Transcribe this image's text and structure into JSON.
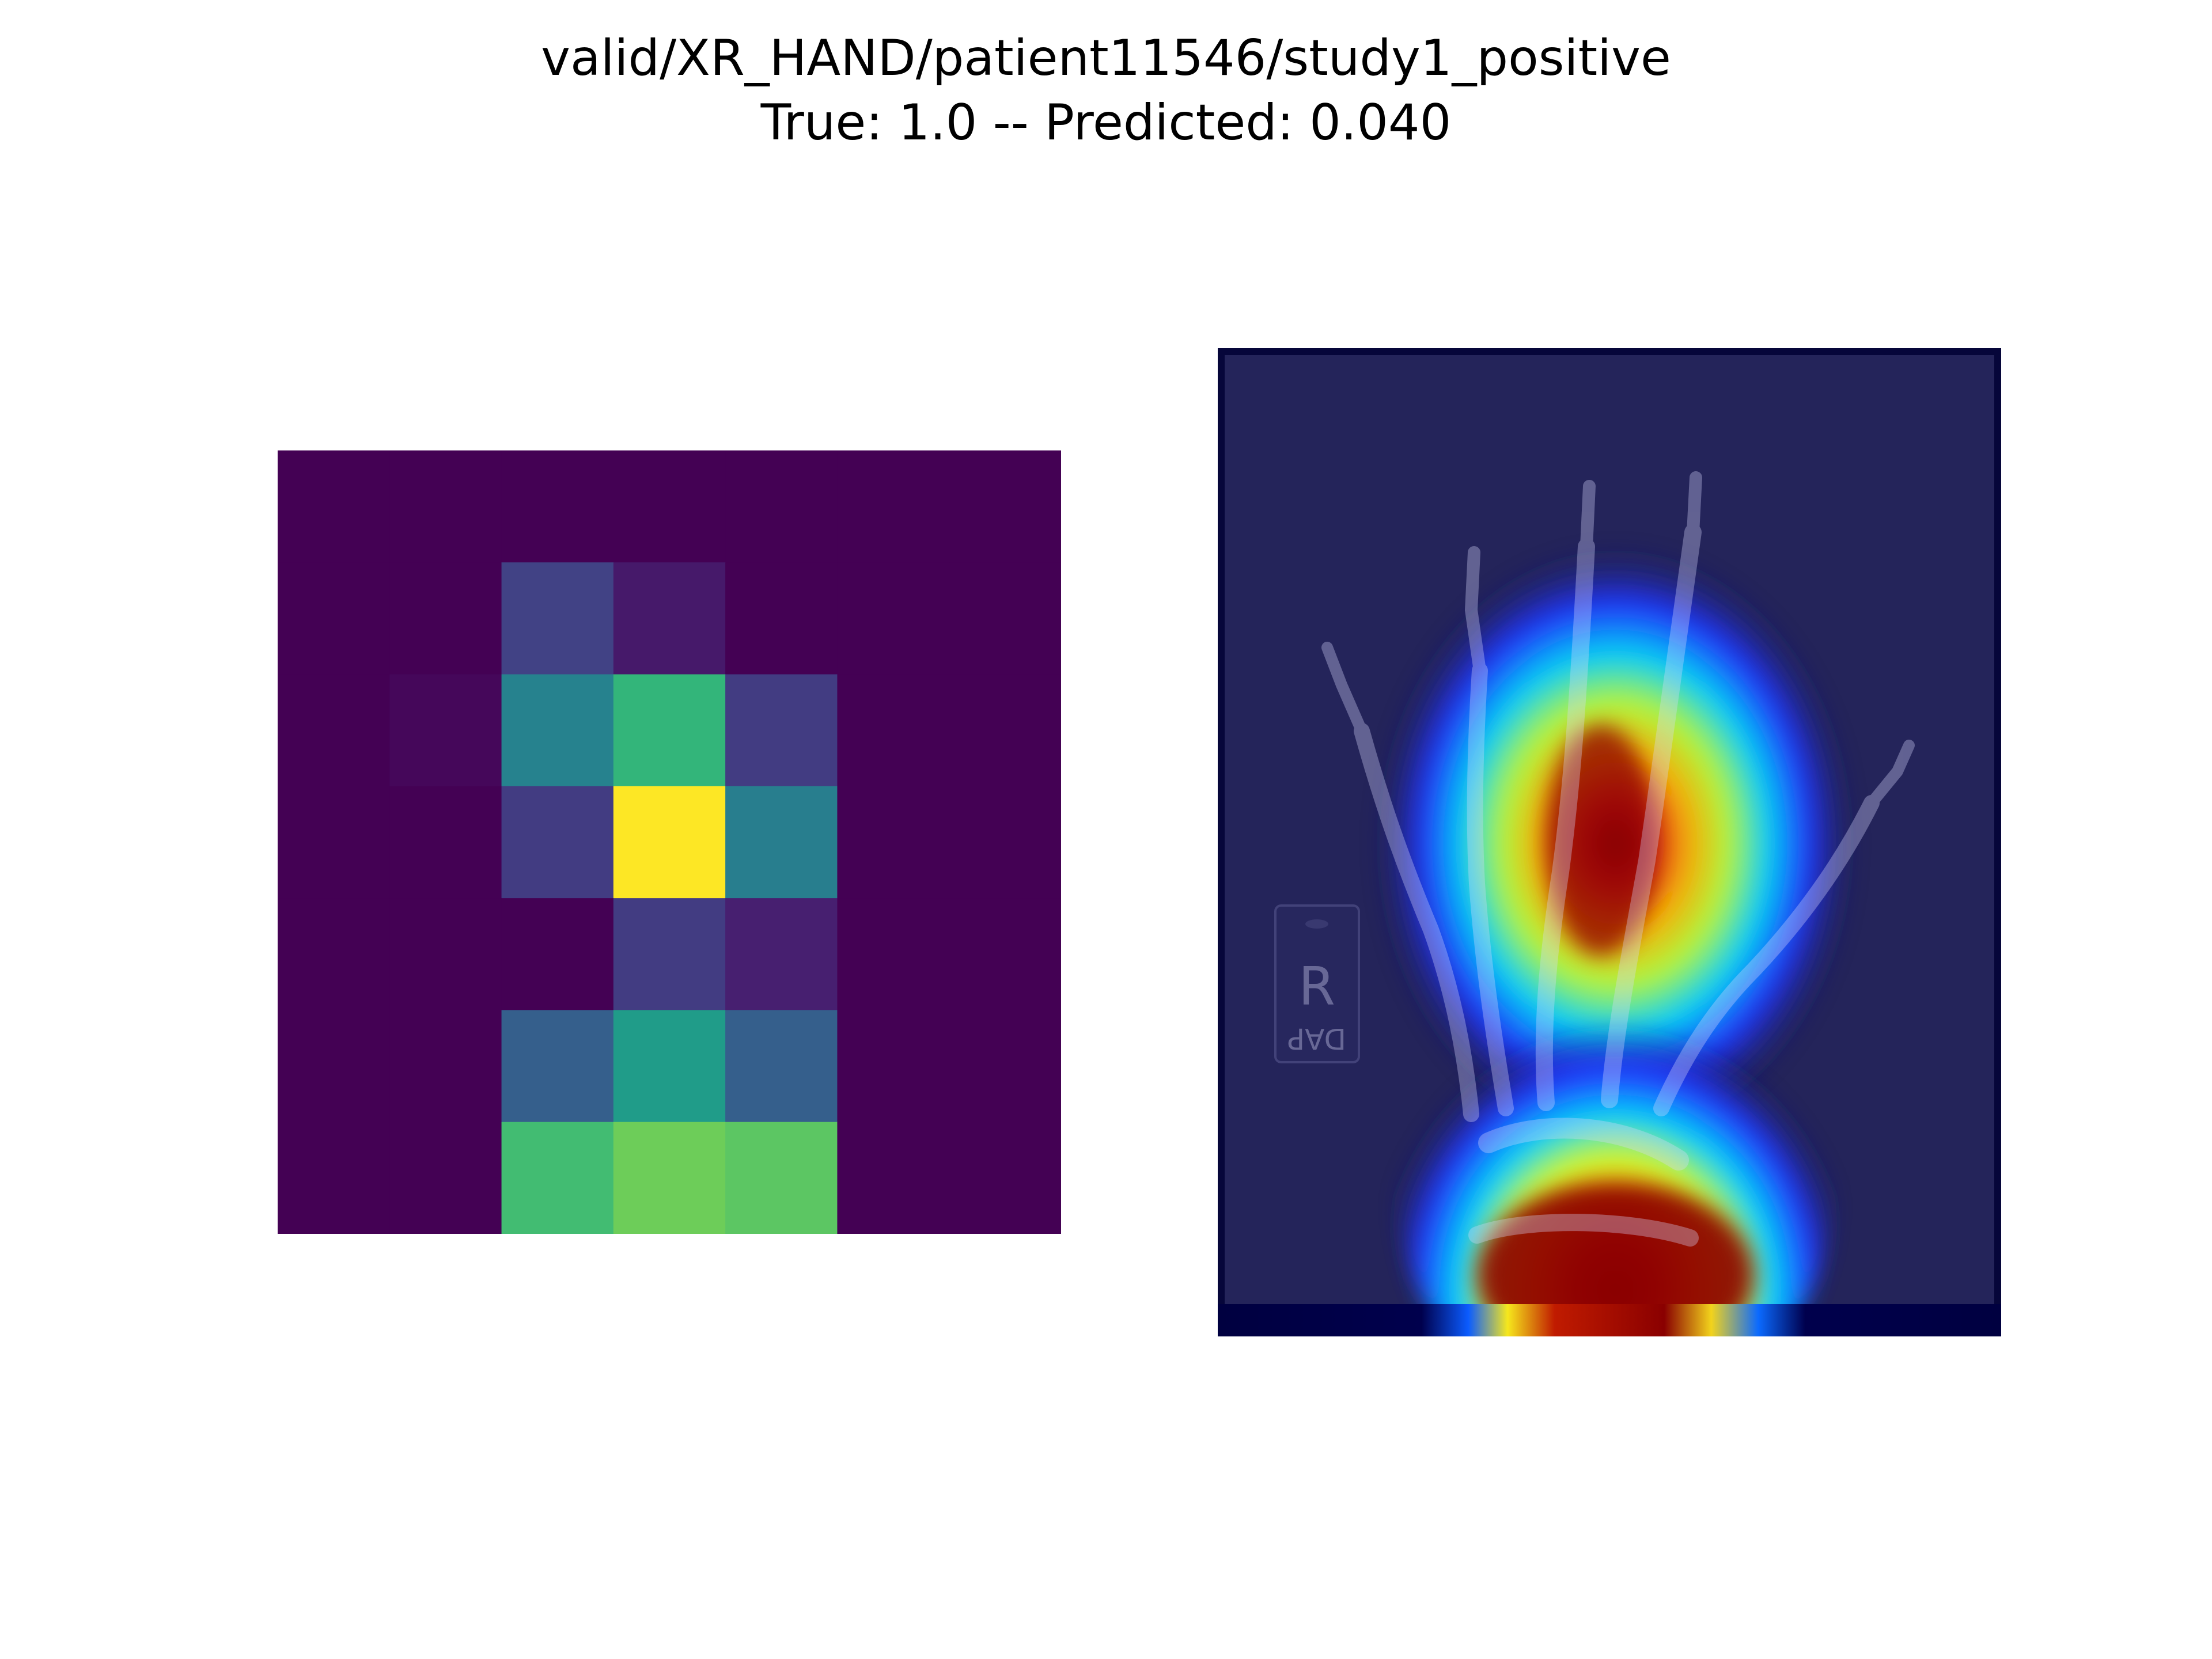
{
  "title": {
    "line1": "valid/XR_HAND/patient11546/study1_positive",
    "line2": "True: 1.0 -- Predicted: 0.040"
  },
  "chart_data": [
    {
      "type": "heatmap",
      "colormap": "viridis",
      "grid": false,
      "axes": "off",
      "rows": 7,
      "cols": 7,
      "values": [
        [
          0.0,
          0.0,
          0.0,
          0.0,
          0.0,
          0.0,
          0.0
        ],
        [
          0.0,
          0.0,
          0.22,
          0.08,
          0.0,
          0.0,
          0.0
        ],
        [
          0.0,
          0.02,
          0.5,
          0.74,
          0.2,
          0.0,
          0.0
        ],
        [
          0.0,
          0.0,
          0.2,
          1.0,
          0.48,
          0.0,
          0.0
        ],
        [
          0.0,
          0.0,
          0.0,
          0.2,
          0.1,
          0.0,
          0.0
        ],
        [
          0.0,
          0.0,
          0.34,
          0.62,
          0.34,
          0.0,
          0.0
        ],
        [
          0.0,
          0.0,
          0.78,
          0.88,
          0.84,
          0.0,
          0.0
        ]
      ]
    },
    {
      "type": "heatmap",
      "kind": "overlay",
      "colormap": "jet",
      "axes": "off",
      "background": "hand x-ray",
      "marker_text": [
        "R",
        "DAP"
      ]
    }
  ]
}
